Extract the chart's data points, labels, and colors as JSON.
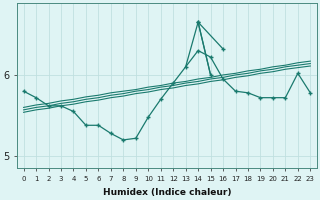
{
  "x": [
    0,
    1,
    2,
    3,
    4,
    5,
    6,
    7,
    8,
    9,
    10,
    11,
    12,
    13,
    14,
    15,
    16,
    17,
    18,
    19,
    20,
    21,
    22,
    23
  ],
  "main_y": [
    5.8,
    5.72,
    5.62,
    5.62,
    5.55,
    5.38,
    5.38,
    5.28,
    5.2,
    5.22,
    5.48,
    5.7,
    5.9,
    6.1,
    6.3,
    6.22,
    5.95,
    5.8,
    5.78,
    5.72,
    5.72,
    5.72,
    6.02,
    5.78
  ],
  "reg1_y": [
    5.6,
    5.63,
    5.65,
    5.68,
    5.7,
    5.73,
    5.75,
    5.78,
    5.8,
    5.82,
    5.85,
    5.87,
    5.9,
    5.92,
    5.95,
    5.97,
    6.0,
    6.02,
    6.05,
    6.07,
    6.1,
    6.12,
    6.15,
    6.17
  ],
  "reg2_y": [
    5.57,
    5.6,
    5.62,
    5.65,
    5.67,
    5.7,
    5.72,
    5.75,
    5.77,
    5.8,
    5.82,
    5.85,
    5.87,
    5.9,
    5.92,
    5.95,
    5.97,
    6.0,
    6.02,
    6.05,
    6.07,
    6.1,
    6.12,
    6.14
  ],
  "reg3_y": [
    5.54,
    5.57,
    5.59,
    5.62,
    5.64,
    5.67,
    5.69,
    5.72,
    5.74,
    5.77,
    5.79,
    5.82,
    5.84,
    5.87,
    5.89,
    5.92,
    5.94,
    5.97,
    5.99,
    6.02,
    6.04,
    6.07,
    6.09,
    6.11
  ],
  "spike_x": [
    13,
    14,
    14,
    15,
    14,
    16
  ],
  "spike_y": [
    6.1,
    6.65,
    6.65,
    6.0,
    6.65,
    6.32
  ],
  "bg_color": "#dff4f4",
  "line_color": "#1a7a6e",
  "grid_color": "#c0e0e0",
  "xlabel": "Humidex (Indice chaleur)",
  "ylim": [
    4.85,
    6.88
  ],
  "xlim": [
    -0.5,
    23.5
  ],
  "yticks": [
    5,
    6
  ],
  "xticks": [
    0,
    1,
    2,
    3,
    4,
    5,
    6,
    7,
    8,
    9,
    10,
    11,
    12,
    13,
    14,
    15,
    16,
    17,
    18,
    19,
    20,
    21,
    22,
    23
  ]
}
